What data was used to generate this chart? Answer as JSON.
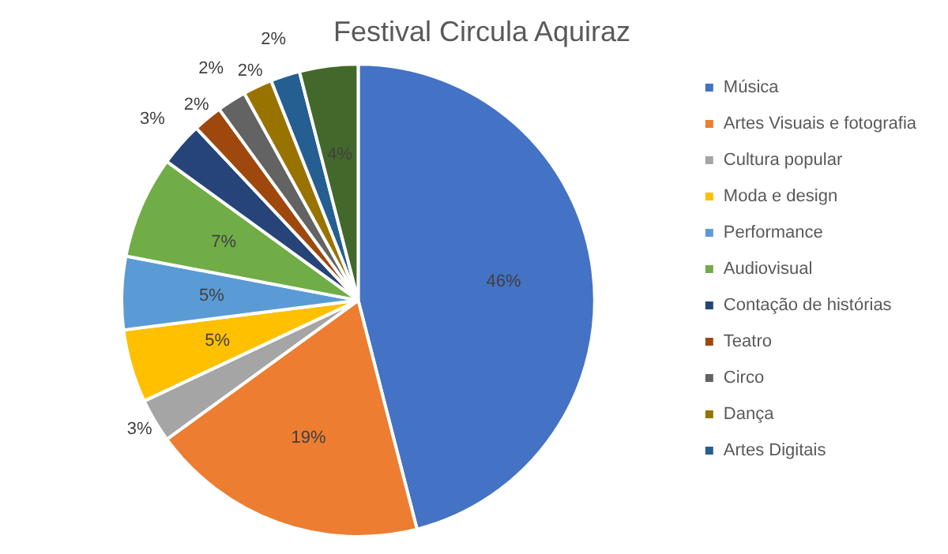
{
  "chart_data": {
    "type": "pie",
    "title": "Festival Circula Aquiraz",
    "categories": [
      "Música",
      "Artes Visuais e fotografia",
      "Cultura popular",
      "Moda e design",
      "Performance",
      "Audiovisual",
      "Contação de histórias",
      "Teatro",
      "Circo",
      "Dança",
      "Artes Digitais",
      null
    ],
    "values": [
      46,
      19,
      3,
      5,
      5,
      7,
      3,
      2,
      2,
      2,
      2,
      4
    ],
    "colors": [
      "#4472c4",
      "#ed7d31",
      "#a5a5a5",
      "#ffc000",
      "#5b9bd5",
      "#70ad47",
      "#264478",
      "#9e480e",
      "#636363",
      "#997300",
      "#255e91",
      "#43682b"
    ],
    "value_labels": [
      "46%",
      "19%",
      "3%",
      "5%",
      "5%",
      "7%",
      "3%",
      "2%",
      "2%",
      "2%",
      "2%",
      "4%"
    ],
    "legend": "right"
  }
}
